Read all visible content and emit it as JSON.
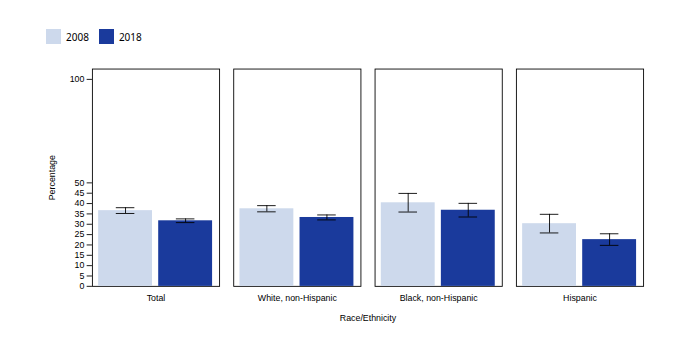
{
  "chart_data": {
    "type": "bar",
    "categories": [
      "Total",
      "White, non-Hispanic",
      "Black, non-Hispanic",
      "Hispanic"
    ],
    "series": [
      {
        "name": "2008",
        "color": "#cdd9ec",
        "values": [
          36.6,
          37.5,
          40.4,
          30.3
        ],
        "errors": [
          1.4,
          1.5,
          4.5,
          4.5
        ]
      },
      {
        "name": "2018",
        "color": "#1a3a9c",
        "values": [
          31.7,
          33.3,
          36.8,
          22.6
        ],
        "errors": [
          0.9,
          1.2,
          3.3,
          2.8
        ]
      }
    ],
    "xlabel": "Race/Ethnicity",
    "ylabel": "Percentage",
    "ylim": [
      0,
      105
    ],
    "yticks": [
      0,
      5,
      10,
      15,
      20,
      25,
      30,
      35,
      40,
      45,
      50,
      100
    ],
    "grid": false,
    "legend": "upper left"
  }
}
